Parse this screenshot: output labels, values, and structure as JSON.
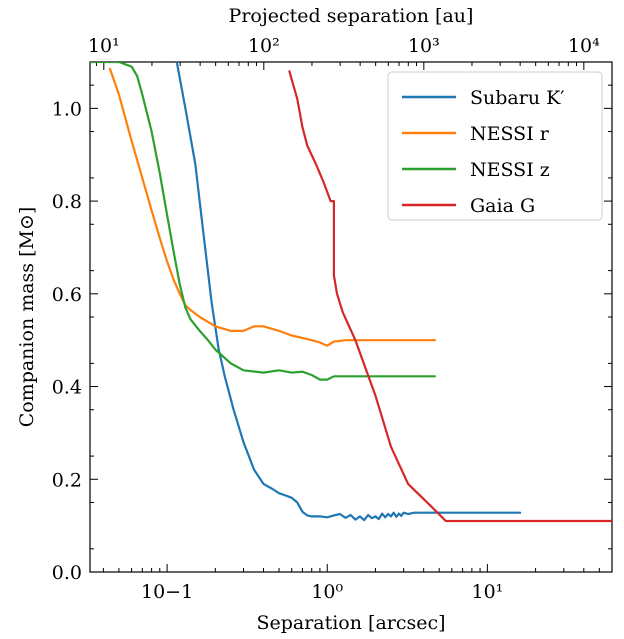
{
  "chart_data": {
    "type": "line",
    "xlabel": "Separation [arcsec]",
    "ylabel": "Companion mass [M⊙]",
    "top_xlabel": "Projected separation [au]",
    "xscale": "log",
    "top_xscale": "log",
    "xlim": [
      0.033,
      60
    ],
    "ylim": [
      0.0,
      1.1
    ],
    "top_xlim": [
      8.2,
      15000
    ],
    "x_ticks": [
      {
        "value": 0.1,
        "label": "10−1"
      },
      {
        "value": 1,
        "label": "10⁰"
      },
      {
        "value": 10,
        "label": "10¹"
      }
    ],
    "top_x_ticks": [
      {
        "value": 10,
        "label": "10¹"
      },
      {
        "value": 100,
        "label": "10²"
      },
      {
        "value": 1000,
        "label": "10³"
      },
      {
        "value": 10000,
        "label": "10⁴"
      }
    ],
    "y_ticks": [
      {
        "value": 0.0,
        "label": "0.0"
      },
      {
        "value": 0.2,
        "label": "0.2"
      },
      {
        "value": 0.4,
        "label": "0.4"
      },
      {
        "value": 0.6,
        "label": "0.6"
      },
      {
        "value": 0.8,
        "label": "0.8"
      },
      {
        "value": 1.0,
        "label": "1.0"
      }
    ],
    "legend_position": "top-right",
    "grid": false,
    "series": [
      {
        "name": "Subaru K′",
        "color": "#1f77b4",
        "x": [
          0.115,
          0.13,
          0.15,
          0.17,
          0.19,
          0.21,
          0.23,
          0.26,
          0.3,
          0.35,
          0.4,
          0.45,
          0.5,
          0.55,
          0.6,
          0.65,
          0.7,
          0.75,
          0.8,
          0.9,
          1.0,
          1.1,
          1.2,
          1.3,
          1.4,
          1.5,
          1.6,
          1.7,
          1.8,
          1.9,
          2.0,
          2.1,
          2.2,
          2.3,
          2.4,
          2.5,
          2.6,
          2.7,
          2.8,
          2.9,
          3.0,
          3.2,
          3.5,
          4.0,
          5.0,
          7.0,
          10.0,
          16.0
        ],
        "y": [
          1.1,
          1.0,
          0.88,
          0.72,
          0.58,
          0.48,
          0.42,
          0.35,
          0.28,
          0.22,
          0.19,
          0.18,
          0.17,
          0.165,
          0.16,
          0.15,
          0.13,
          0.122,
          0.12,
          0.12,
          0.118,
          0.122,
          0.125,
          0.117,
          0.123,
          0.113,
          0.12,
          0.112,
          0.123,
          0.116,
          0.12,
          0.114,
          0.126,
          0.118,
          0.125,
          0.12,
          0.128,
          0.119,
          0.126,
          0.121,
          0.128,
          0.125,
          0.128,
          0.128,
          0.128,
          0.128,
          0.128,
          0.128
        ]
      },
      {
        "name": "NESSI r",
        "color": "#ff7f0e",
        "x": [
          0.044,
          0.05,
          0.06,
          0.07,
          0.08,
          0.09,
          0.1,
          0.11,
          0.12,
          0.13,
          0.14,
          0.16,
          0.2,
          0.25,
          0.3,
          0.35,
          0.4,
          0.5,
          0.6,
          0.7,
          0.8,
          0.9,
          1.0,
          1.1,
          1.3,
          2.0,
          3.0,
          4.7
        ],
        "y": [
          1.085,
          1.03,
          0.93,
          0.85,
          0.78,
          0.72,
          0.67,
          0.63,
          0.6,
          0.575,
          0.565,
          0.55,
          0.53,
          0.52,
          0.52,
          0.53,
          0.53,
          0.52,
          0.51,
          0.505,
          0.5,
          0.495,
          0.488,
          0.497,
          0.5,
          0.5,
          0.5,
          0.5
        ]
      },
      {
        "name": "NESSI z",
        "color": "#2ca02c",
        "x": [
          0.033,
          0.05,
          0.06,
          0.065,
          0.07,
          0.08,
          0.09,
          0.1,
          0.11,
          0.12,
          0.13,
          0.14,
          0.16,
          0.18,
          0.2,
          0.25,
          0.3,
          0.4,
          0.5,
          0.6,
          0.7,
          0.8,
          0.9,
          1.0,
          1.1,
          1.3,
          2.0,
          3.0,
          4.7
        ],
        "y": [
          1.1,
          1.1,
          1.09,
          1.07,
          1.03,
          0.95,
          0.86,
          0.77,
          0.69,
          0.62,
          0.57,
          0.545,
          0.52,
          0.5,
          0.48,
          0.45,
          0.435,
          0.43,
          0.435,
          0.43,
          0.432,
          0.425,
          0.415,
          0.415,
          0.422,
          0.422,
          0.422,
          0.422,
          0.422
        ]
      },
      {
        "name": "Gaia G",
        "color": "#d62728",
        "x": [
          0.58,
          0.65,
          0.7,
          0.75,
          0.85,
          0.95,
          1.05,
          1.1,
          1.1,
          1.15,
          1.25,
          1.5,
          2.0,
          2.5,
          3.2,
          4.5,
          5.5,
          10.0,
          20.0,
          60.0
        ],
        "y": [
          1.08,
          1.02,
          0.96,
          0.92,
          0.88,
          0.84,
          0.8,
          0.8,
          0.64,
          0.6,
          0.56,
          0.5,
          0.38,
          0.27,
          0.19,
          0.14,
          0.11,
          0.11,
          0.11,
          0.11
        ]
      }
    ]
  }
}
